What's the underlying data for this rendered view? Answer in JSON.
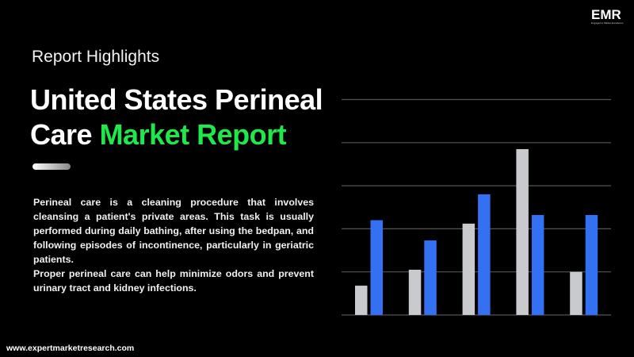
{
  "header": {
    "subtitle": "Report Highlights",
    "title_line1": "United States Perineal",
    "title_line2_white": "Care ",
    "title_line2_green": "Market Report"
  },
  "body": {
    "paragraph1": "Perineal care is a cleaning procedure that involves cleansing a patient's private areas. This task is usually performed during daily bathing, after using the bedpan, and following episodes of incontinence, particularly in geriatric patients.",
    "paragraph2": "Proper perineal care can help minimize odors and prevent urinary tract and kidney infections."
  },
  "footer": {
    "url": "www.expertmarketresearch.com"
  },
  "logo": {
    "text": "EMR",
    "tagline": "Engaged in Market Excellence"
  },
  "colors": {
    "accent_green": "#1fe84a",
    "series_grey": "#c8cace",
    "series_blue": "#3371f2",
    "gridline": "#555555"
  },
  "chart_data": {
    "type": "bar",
    "categories": [
      "",
      "",
      "",
      "",
      ""
    ],
    "series": [
      {
        "values": [
          0.68,
          1.05,
          2.12,
          3.85,
          1.0
        ],
        "color": "#c8cace"
      },
      {
        "values": [
          2.2,
          1.73,
          2.8,
          2.32,
          2.32
        ],
        "color": "#3371f2"
      }
    ],
    "ylim": [
      0,
      5
    ],
    "grid": true,
    "axis_labels": false
  }
}
